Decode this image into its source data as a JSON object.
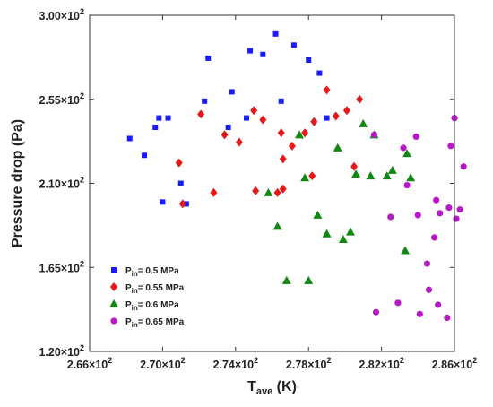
{
  "chart_data": {
    "type": "scatter",
    "xlabel_main": "T",
    "xlabel_sub": "ave",
    "xlabel_unit": " (K)",
    "ylabel": "Pressure drop (Pa)",
    "xlim": [
      266,
      286
    ],
    "ylim": [
      120,
      300
    ],
    "x_ticks": [
      266,
      270,
      274,
      278,
      282,
      286
    ],
    "y_ticks": [
      120,
      165,
      210,
      255,
      300
    ],
    "x_tick_labels": [
      "2.66×10",
      "2.70×10",
      "2.74×10",
      "2.78×10",
      "2.82×10",
      "2.86×10"
    ],
    "y_tick_labels": [
      "1.20×10",
      "1.65×10",
      "2.10×10",
      "2.55×10",
      "3.00×10"
    ],
    "tick_exponent": "2",
    "legend_position": "lower-left",
    "series": [
      {
        "name_main": "P",
        "name_sub": "in",
        "name_rest": "= 0.5 MPa",
        "marker": "square",
        "color": "#1a1aff",
        "points": [
          [
            268.2,
            234
          ],
          [
            269.0,
            225
          ],
          [
            269.6,
            240
          ],
          [
            269.8,
            245
          ],
          [
            270.0,
            200
          ],
          [
            270.3,
            245
          ],
          [
            271.0,
            210
          ],
          [
            271.3,
            199
          ],
          [
            272.3,
            254
          ],
          [
            272.5,
            277
          ],
          [
            273.6,
            240
          ],
          [
            273.8,
            259
          ],
          [
            274.6,
            245
          ],
          [
            274.8,
            281
          ],
          [
            275.5,
            279
          ],
          [
            276.5,
            254
          ],
          [
            276.2,
            290
          ],
          [
            277.2,
            284
          ],
          [
            278.0,
            276
          ],
          [
            278.6,
            269
          ],
          [
            279.0,
            245
          ]
        ]
      },
      {
        "name_main": "P",
        "name_sub": "in",
        "name_rest": "= 0.55 MPa",
        "marker": "diamond",
        "color": "#e81818",
        "points": [
          [
            270.9,
            221
          ],
          [
            271.1,
            199
          ],
          [
            272.1,
            247
          ],
          [
            272.8,
            205
          ],
          [
            273.4,
            236
          ],
          [
            274.2,
            232
          ],
          [
            275.0,
            249
          ],
          [
            275.1,
            206
          ],
          [
            275.5,
            244
          ],
          [
            276.3,
            205
          ],
          [
            276.5,
            237
          ],
          [
            276.6,
            223
          ],
          [
            276.6,
            207
          ],
          [
            277.1,
            230
          ],
          [
            277.8,
            237
          ],
          [
            278.3,
            243
          ],
          [
            278.2,
            214
          ],
          [
            279.0,
            260
          ],
          [
            279.5,
            246
          ],
          [
            280.1,
            249
          ],
          [
            280.5,
            219
          ],
          [
            280.8,
            255
          ]
        ]
      },
      {
        "name_main": "P",
        "name_sub": "in",
        "name_rest": "= 0.6 MPa",
        "marker": "triangle",
        "color": "#128812",
        "points": [
          [
            275.8,
            205
          ],
          [
            276.3,
            187
          ],
          [
            276.8,
            158
          ],
          [
            277.5,
            236
          ],
          [
            277.8,
            213
          ],
          [
            278.0,
            158
          ],
          [
            278.5,
            193
          ],
          [
            279.0,
            183
          ],
          [
            279.6,
            229
          ],
          [
            279.9,
            180
          ],
          [
            280.3,
            184
          ],
          [
            280.6,
            215
          ],
          [
            281.0,
            242
          ],
          [
            281.4,
            214
          ],
          [
            281.6,
            236
          ],
          [
            282.3,
            214
          ],
          [
            282.6,
            217
          ],
          [
            283.3,
            174
          ],
          [
            283.4,
            226
          ],
          [
            283.6,
            213
          ]
        ]
      },
      {
        "name_main": "P",
        "name_sub": "in",
        "name_rest": "= 0.65 MPa",
        "marker": "circle",
        "color": "#b818c8",
        "points": [
          [
            281.6,
            236
          ],
          [
            281.7,
            141
          ],
          [
            282.5,
            192
          ],
          [
            282.9,
            146
          ],
          [
            283.2,
            229
          ],
          [
            283.4,
            209
          ],
          [
            283.9,
            235
          ],
          [
            284.0,
            193
          ],
          [
            284.1,
            140
          ],
          [
            284.5,
            167
          ],
          [
            284.6,
            153
          ],
          [
            284.9,
            181
          ],
          [
            285.0,
            201
          ],
          [
            285.1,
            145
          ],
          [
            285.2,
            194
          ],
          [
            285.6,
            138
          ],
          [
            285.7,
            197
          ],
          [
            285.8,
            230
          ],
          [
            286.0,
            245
          ],
          [
            286.1,
            191
          ],
          [
            286.3,
            196
          ],
          [
            286.5,
            219
          ]
        ]
      }
    ]
  }
}
